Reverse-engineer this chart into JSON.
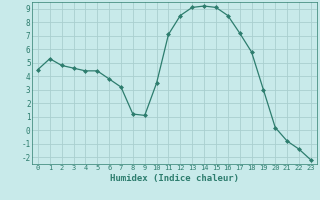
{
  "x": [
    0,
    1,
    2,
    3,
    4,
    5,
    6,
    7,
    8,
    9,
    10,
    11,
    12,
    13,
    14,
    15,
    16,
    17,
    18,
    19,
    20,
    21,
    22,
    23
  ],
  "y": [
    4.5,
    5.3,
    4.8,
    4.6,
    4.4,
    4.4,
    3.8,
    3.2,
    1.2,
    1.1,
    3.5,
    7.1,
    8.5,
    9.1,
    9.2,
    9.1,
    8.5,
    7.2,
    5.8,
    3.0,
    0.2,
    -0.8,
    -1.4,
    -2.2
  ],
  "line_color": "#2d7d6e",
  "marker": "D",
  "marker_size": 2.0,
  "bg_color": "#c8eaea",
  "grid_color": "#aacfcf",
  "xlabel": "Humidex (Indice chaleur)",
  "xlim": [
    -0.5,
    23.5
  ],
  "ylim": [
    -2.5,
    9.5
  ],
  "xticks": [
    0,
    1,
    2,
    3,
    4,
    5,
    6,
    7,
    8,
    9,
    10,
    11,
    12,
    13,
    14,
    15,
    16,
    17,
    18,
    19,
    20,
    21,
    22,
    23
  ],
  "yticks": [
    -2,
    -1,
    0,
    1,
    2,
    3,
    4,
    5,
    6,
    7,
    8,
    9
  ],
  "tick_color": "#2d7d6e",
  "axis_color": "#2d7d6e",
  "font_family": "monospace"
}
